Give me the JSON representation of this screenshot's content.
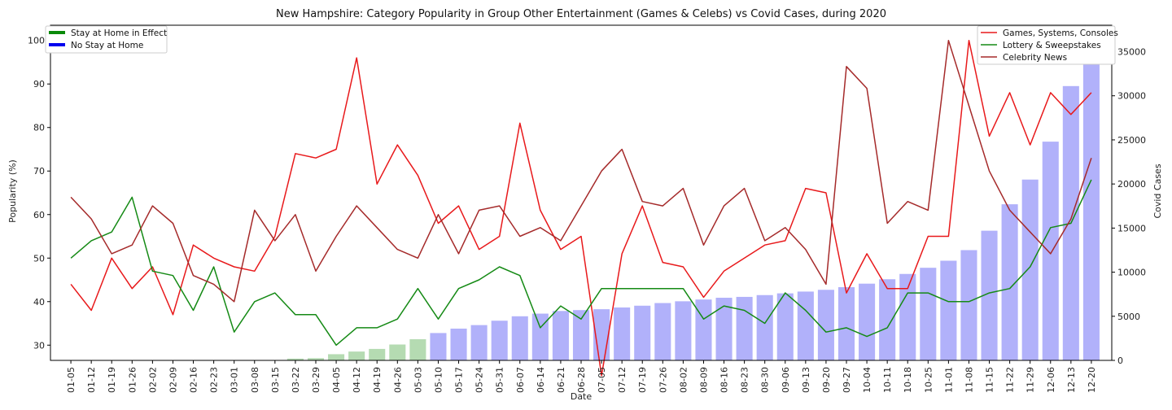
{
  "chart_data": {
    "type": "bar",
    "title": "New Hampshire: Category Popularity in Group Other Entertainment (Games & Celebs) vs Covid Cases, during 2020",
    "xlabel": "Date",
    "ylabel": "Popularity (%)",
    "y2label": "Covid Cases",
    "ylim": [
      26.5,
      103.5
    ],
    "y2lim": [
      0,
      38000
    ],
    "yticks": [
      30,
      40,
      50,
      60,
      70,
      80,
      90,
      100
    ],
    "y2ticks": [
      0,
      5000,
      10000,
      15000,
      20000,
      25000,
      30000,
      35000
    ],
    "categories": [
      "01-05",
      "01-12",
      "01-19",
      "01-26",
      "02-02",
      "02-09",
      "02-16",
      "02-23",
      "03-01",
      "03-08",
      "03-15",
      "03-22",
      "03-29",
      "04-05",
      "04-12",
      "04-19",
      "04-26",
      "05-03",
      "05-10",
      "05-17",
      "05-24",
      "05-31",
      "06-07",
      "06-14",
      "06-21",
      "06-28",
      "07-05",
      "07-12",
      "07-19",
      "07-26",
      "08-02",
      "08-09",
      "08-16",
      "08-23",
      "08-30",
      "09-06",
      "09-13",
      "09-20",
      "09-27",
      "10-04",
      "10-11",
      "10-18",
      "10-25",
      "11-01",
      "11-08",
      "11-15",
      "11-22",
      "11-29",
      "12-06",
      "12-13",
      "12-20"
    ],
    "covid_cases": [
      0,
      0,
      0,
      0,
      0,
      0,
      0,
      0,
      0,
      0,
      25,
      200,
      250,
      700,
      1000,
      1300,
      1800,
      2400,
      3100,
      3600,
      4000,
      4500,
      5000,
      5300,
      5600,
      5700,
      5800,
      6000,
      6200,
      6500,
      6700,
      6900,
      7100,
      7200,
      7400,
      7600,
      7800,
      8000,
      8300,
      8700,
      9200,
      9800,
      10500,
      11300,
      12500,
      14700,
      17700,
      20500,
      24800,
      31100,
      36500
    ],
    "stay_at_home": [
      false,
      false,
      false,
      false,
      false,
      false,
      false,
      false,
      false,
      false,
      false,
      true,
      true,
      true,
      true,
      true,
      true,
      true,
      false,
      false,
      false,
      false,
      false,
      false,
      false,
      false,
      false,
      false,
      false,
      false,
      false,
      false,
      false,
      false,
      false,
      false,
      false,
      false,
      false,
      false,
      false,
      false,
      false,
      false,
      false,
      false,
      false,
      false,
      false,
      false,
      false
    ],
    "series": [
      {
        "name": "Games, Systems, Consoles",
        "color": "#e8191b",
        "values": [
          44,
          38,
          50,
          43,
          48,
          37,
          53,
          50,
          48,
          47,
          55,
          74,
          73,
          75,
          96,
          67,
          76,
          69,
          58,
          62,
          52,
          55,
          81,
          61,
          52,
          55,
          23,
          51,
          62,
          49,
          48,
          41,
          47,
          50,
          53,
          54,
          66,
          65,
          42,
          51,
          43,
          43,
          55,
          55,
          100,
          78,
          88,
          76,
          88,
          83,
          88
        ]
      },
      {
        "name": "Lottery & Sweepstakes",
        "color": "#158a15",
        "values": [
          50,
          54,
          56,
          64,
          47,
          46,
          38,
          48,
          33,
          40,
          42,
          37,
          37,
          30,
          34,
          34,
          36,
          43,
          36,
          43,
          45,
          48,
          46,
          34,
          39,
          36,
          43,
          43,
          43,
          43,
          43,
          36,
          39,
          38,
          35,
          42,
          38,
          33,
          34,
          32,
          34,
          42,
          42,
          40,
          40,
          42,
          43,
          48,
          57,
          58,
          68
        ]
      },
      {
        "name": "Celebrity News",
        "color": "#a52a2a",
        "values": [
          64,
          59,
          51,
          53,
          62,
          58,
          46,
          44,
          40,
          61,
          54,
          60,
          47,
          55,
          62,
          57,
          52,
          50,
          60,
          51,
          61,
          62,
          55,
          57,
          54,
          62,
          70,
          75,
          63,
          62,
          66,
          53,
          62,
          66,
          54,
          57,
          52,
          44,
          94,
          89,
          58,
          63,
          61,
          100,
          85,
          70,
          61,
          56,
          51,
          59,
          73
        ]
      }
    ],
    "legend_left": [
      {
        "label": "Stay at Home in Effect",
        "color": "#0a8a0a"
      },
      {
        "label": "No Stay at Home",
        "color": "#0000ee"
      }
    ],
    "bar_colors": {
      "stay_at_home": "#b5dbb2",
      "no_stay_at_home": "#b1b1fa"
    },
    "legend_placement_left": "top-left",
    "legend_placement_right": "top-right",
    "grid": false
  }
}
